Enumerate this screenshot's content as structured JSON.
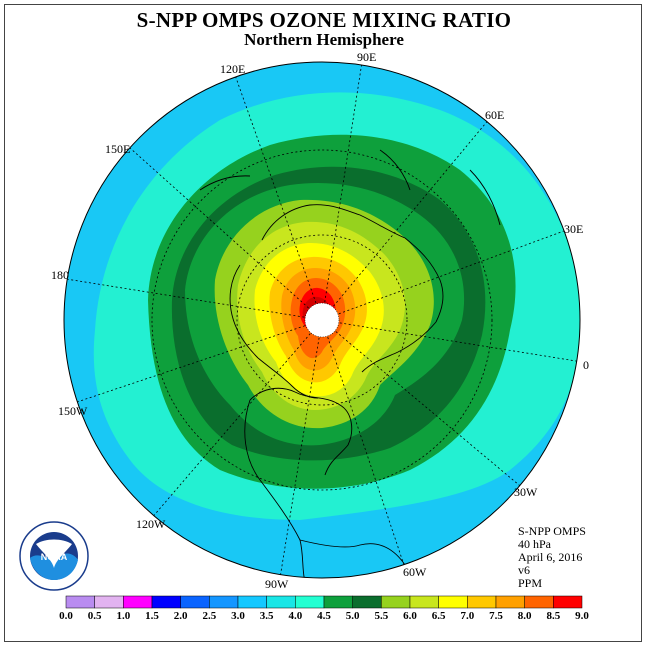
{
  "title": "S-NPP OMPS OZONE MIXING RATIO",
  "subtitle": "Northern Hemisphere",
  "logo": {
    "text": "NOAA",
    "ring_text": "NATIONAL OCEANIC AND ATMOSPHERIC ADMINISTRATION · U.S. DEPARTMENT OF COMMERCE"
  },
  "longitude_labels": [
    "90E",
    "60E",
    "30E",
    "0",
    "30W",
    "60W",
    "90W",
    "120W",
    "150W",
    "180",
    "150E",
    "120E"
  ],
  "info": {
    "instrument": "S-NPP OMPS",
    "level": "40 hPa",
    "date": "April 6, 2016",
    "version": "v6",
    "units": "PPM"
  },
  "colorbar": {
    "ticks": [
      "0.0",
      "0.5",
      "1.0",
      "1.5",
      "2.0",
      "2.5",
      "3.0",
      "3.5",
      "4.0",
      "4.5",
      "5.0",
      "5.5",
      "6.0",
      "6.5",
      "7.0",
      "7.5",
      "8.0",
      "8.5",
      "9.0"
    ],
    "colors": [
      "#b98cf0",
      "#e2b3f0",
      "#ff00ff",
      "#0000ff",
      "#0a64ff",
      "#1496ff",
      "#14c8ff",
      "#19e6e6",
      "#23ffd2",
      "#0ea03c",
      "#0a6e2d",
      "#96d21e",
      "#c8e61e",
      "#ffff00",
      "#ffc800",
      "#ffa000",
      "#ff6400",
      "#ff0000",
      "#8c5a3c"
    ]
  }
}
